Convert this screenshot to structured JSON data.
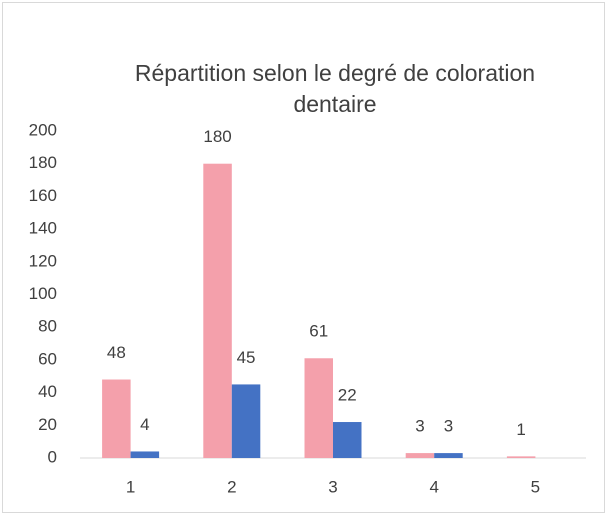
{
  "chart_data": {
    "type": "bar",
    "title": "Répartition selon le degré de coloration dentaire",
    "categories": [
      "1",
      "2",
      "3",
      "4",
      "5"
    ],
    "series": [
      {
        "color": "#f4a0ab",
        "values": [
          48,
          180,
          61,
          3,
          1
        ]
      },
      {
        "color": "#4472c4",
        "values": [
          4,
          45,
          22,
          3,
          null
        ]
      }
    ],
    "ylim": [
      0,
      200
    ],
    "yticks": [
      0,
      20,
      40,
      60,
      80,
      100,
      120,
      140,
      160,
      180,
      200
    ],
    "grid": false
  }
}
